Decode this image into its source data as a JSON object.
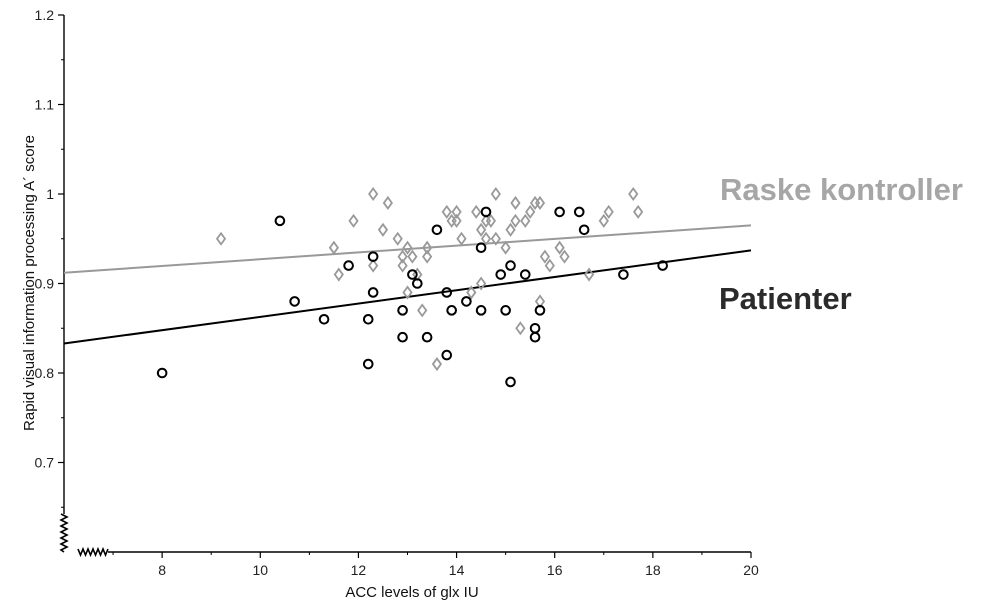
{
  "colors": {
    "patient": "#000000",
    "control": "#999999",
    "control_label": "#a6a6a6",
    "patient_label": "#2b2b2b",
    "axis": "#000000"
  },
  "chart_data": {
    "type": "scatter",
    "xlabel": "ACC levels of glx IU",
    "ylabel": "Rapid visual information processing A´ score",
    "xlim": [
      6,
      20
    ],
    "ylim": [
      0.6,
      1.2
    ],
    "x_ticks": [
      "8",
      "10",
      "12",
      "14",
      "16",
      "18",
      "20"
    ],
    "y_ticks": [
      "0.7",
      "0.8",
      "0.9",
      "1",
      "1.1",
      "1.2"
    ],
    "axis_break": true,
    "grid": false,
    "series": [
      {
        "name": "Raske kontroller",
        "marker": "diamond",
        "color": "#999999",
        "trend": [
          [
            6,
            0.912
          ],
          [
            20,
            0.965
          ]
        ],
        "points": [
          [
            9.2,
            0.95
          ],
          [
            11.5,
            0.94
          ],
          [
            11.6,
            0.91
          ],
          [
            11.9,
            0.97
          ],
          [
            12.3,
            0.92
          ],
          [
            12.3,
            1.0
          ],
          [
            12.5,
            0.96
          ],
          [
            12.6,
            0.99
          ],
          [
            12.8,
            0.95
          ],
          [
            12.9,
            0.93
          ],
          [
            12.9,
            0.92
          ],
          [
            13.0,
            0.89
          ],
          [
            13.0,
            0.94
          ],
          [
            13.1,
            0.93
          ],
          [
            13.2,
            0.91
          ],
          [
            13.3,
            0.87
          ],
          [
            13.4,
            0.94
          ],
          [
            13.4,
            0.93
          ],
          [
            13.6,
            0.81
          ],
          [
            13.8,
            0.98
          ],
          [
            13.9,
            0.97
          ],
          [
            14.0,
            0.98
          ],
          [
            14.0,
            0.97
          ],
          [
            14.1,
            0.95
          ],
          [
            14.3,
            0.89
          ],
          [
            14.4,
            0.98
          ],
          [
            14.5,
            0.96
          ],
          [
            14.5,
            0.9
          ],
          [
            14.6,
            0.97
          ],
          [
            14.6,
            0.95
          ],
          [
            14.7,
            0.97
          ],
          [
            14.8,
            0.95
          ],
          [
            14.8,
            1.0
          ],
          [
            15.0,
            0.94
          ],
          [
            15.1,
            0.96
          ],
          [
            15.2,
            0.99
          ],
          [
            15.2,
            0.97
          ],
          [
            15.3,
            0.85
          ],
          [
            15.4,
            0.97
          ],
          [
            15.5,
            0.98
          ],
          [
            15.6,
            0.99
          ],
          [
            15.7,
            0.99
          ],
          [
            15.7,
            0.88
          ],
          [
            15.8,
            0.93
          ],
          [
            15.9,
            0.92
          ],
          [
            16.1,
            0.94
          ],
          [
            16.2,
            0.93
          ],
          [
            16.7,
            0.91
          ],
          [
            17.0,
            0.97
          ],
          [
            17.1,
            0.98
          ],
          [
            17.6,
            1.0
          ],
          [
            17.7,
            0.98
          ]
        ]
      },
      {
        "name": "Patienter",
        "marker": "circle",
        "color": "#000000",
        "trend": [
          [
            6,
            0.833
          ],
          [
            20,
            0.937
          ]
        ],
        "points": [
          [
            8.0,
            0.8
          ],
          [
            10.4,
            0.97
          ],
          [
            10.7,
            0.88
          ],
          [
            11.3,
            0.86
          ],
          [
            11.8,
            0.92
          ],
          [
            12.2,
            0.86
          ],
          [
            12.2,
            0.81
          ],
          [
            12.3,
            0.89
          ],
          [
            12.3,
            0.93
          ],
          [
            12.9,
            0.87
          ],
          [
            12.9,
            0.84
          ],
          [
            13.1,
            0.91
          ],
          [
            13.2,
            0.9
          ],
          [
            13.4,
            0.84
          ],
          [
            13.6,
            0.96
          ],
          [
            13.8,
            0.89
          ],
          [
            13.8,
            0.82
          ],
          [
            13.9,
            0.87
          ],
          [
            14.2,
            0.88
          ],
          [
            14.5,
            0.87
          ],
          [
            14.5,
            0.94
          ],
          [
            14.6,
            0.98
          ],
          [
            14.9,
            0.91
          ],
          [
            15.0,
            0.87
          ],
          [
            15.1,
            0.92
          ],
          [
            15.1,
            0.79
          ],
          [
            15.4,
            0.91
          ],
          [
            15.6,
            0.84
          ],
          [
            15.6,
            0.85
          ],
          [
            15.7,
            0.87
          ],
          [
            16.1,
            0.98
          ],
          [
            16.5,
            0.98
          ],
          [
            16.6,
            0.96
          ],
          [
            17.4,
            0.91
          ],
          [
            18.2,
            0.92
          ]
        ]
      }
    ],
    "labels": {
      "controls": "Raske kontroller",
      "patients": "Patienter"
    }
  }
}
